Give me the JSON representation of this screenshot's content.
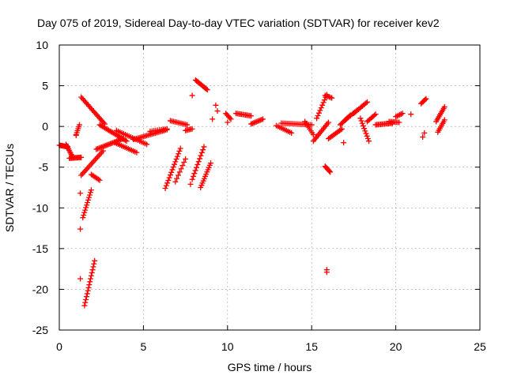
{
  "chart_data": {
    "type": "scatter",
    "title": "Day 075 of 2019, Sidereal Day-to-day VTEC variation (SDTVAR) for receiver kev2",
    "xlabel": "GPS time / hours",
    "ylabel": "SDTVAR / TECUs",
    "xlim": [
      0,
      25
    ],
    "ylim": [
      -25,
      10
    ],
    "xticks": [
      0,
      5,
      10,
      15,
      20,
      25
    ],
    "yticks": [
      -25,
      -20,
      -15,
      -10,
      -5,
      0,
      5,
      10
    ],
    "grid": true,
    "marker": "+",
    "color": "#ff0000",
    "series": [
      {
        "name": "SDTVAR",
        "segments": [
          {
            "x0": 0.0,
            "x1": 0.5,
            "y0": -2.3,
            "y1": -2.5,
            "n": 10
          },
          {
            "x0": 0.4,
            "x1": 0.8,
            "y0": -2.2,
            "y1": -3.8,
            "n": 10
          },
          {
            "x0": 0.6,
            "x1": 1.3,
            "y0": -3.9,
            "y1": -3.8,
            "n": 12
          },
          {
            "x0": 1.0,
            "x1": 1.2,
            "y0": -1.0,
            "y1": 0.2,
            "n": 6
          },
          {
            "x0": 1.3,
            "x1": 2.7,
            "y0": 3.6,
            "y1": 0.3,
            "n": 22
          },
          {
            "x0": 2.4,
            "x1": 4.0,
            "y0": 0.2,
            "y1": -1.8,
            "n": 22
          },
          {
            "x0": 1.3,
            "x1": 2.6,
            "y0": -6.0,
            "y1": -3.0,
            "n": 18
          },
          {
            "x0": 2.2,
            "x1": 3.8,
            "y0": -2.8,
            "y1": -1.5,
            "n": 22
          },
          {
            "x0": 1.4,
            "x1": 1.9,
            "y0": -11.2,
            "y1": -7.8,
            "n": 12
          },
          {
            "x0": 1.5,
            "x1": 2.1,
            "y0": -22.0,
            "y1": -16.5,
            "n": 16
          },
          {
            "x0": 1.9,
            "x1": 2.4,
            "y0": -5.9,
            "y1": -6.6,
            "n": 8
          },
          {
            "x0": 3.3,
            "x1": 4.6,
            "y0": -2.0,
            "y1": -3.2,
            "n": 14
          },
          {
            "x0": 3.4,
            "x1": 5.2,
            "y0": -0.5,
            "y1": -2.2,
            "n": 18
          },
          {
            "x0": 4.4,
            "x1": 6.4,
            "y0": -1.6,
            "y1": -0.4,
            "n": 24
          },
          {
            "x0": 5.4,
            "x1": 6.4,
            "y0": -0.6,
            "y1": -0.3,
            "n": 10
          },
          {
            "x0": 6.3,
            "x1": 7.2,
            "y0": -7.6,
            "y1": -2.7,
            "n": 16
          },
          {
            "x0": 6.6,
            "x1": 7.6,
            "y0": 0.7,
            "y1": 0.2,
            "n": 12
          },
          {
            "x0": 6.9,
            "x1": 7.5,
            "y0": -6.8,
            "y1": -4.0,
            "n": 8
          },
          {
            "x0": 7.5,
            "x1": 7.9,
            "y0": -0.5,
            "y1": -0.3,
            "n": 6
          },
          {
            "x0": 7.9,
            "x1": 8.6,
            "y0": -6.5,
            "y1": -2.5,
            "n": 12
          },
          {
            "x0": 8.1,
            "x1": 8.8,
            "y0": 5.7,
            "y1": 4.5,
            "n": 12
          },
          {
            "x0": 8.4,
            "x1": 9.0,
            "y0": -7.5,
            "y1": -4.5,
            "n": 12
          },
          {
            "x0": 9.9,
            "x1": 10.2,
            "y0": 1.6,
            "y1": 0.9,
            "n": 6
          },
          {
            "x0": 10.5,
            "x1": 11.4,
            "y0": 1.6,
            "y1": 1.3,
            "n": 12
          },
          {
            "x0": 11.4,
            "x1": 12.1,
            "y0": 0.3,
            "y1": 0.9,
            "n": 10
          },
          {
            "x0": 12.9,
            "x1": 13.8,
            "y0": 0.1,
            "y1": -0.8,
            "n": 10
          },
          {
            "x0": 13.2,
            "x1": 15.0,
            "y0": 0.4,
            "y1": 0.2,
            "n": 20
          },
          {
            "x0": 14.6,
            "x1": 15.1,
            "y0": 0.6,
            "y1": -1.0,
            "n": 8
          },
          {
            "x0": 15.1,
            "x1": 16.0,
            "y0": -1.8,
            "y1": 0.5,
            "n": 14
          },
          {
            "x0": 15.3,
            "x1": 15.9,
            "y0": 1.0,
            "y1": 3.9,
            "n": 10
          },
          {
            "x0": 15.8,
            "x1": 16.2,
            "y0": 3.8,
            "y1": 3.5,
            "n": 6
          },
          {
            "x0": 15.8,
            "x1": 16.1,
            "y0": -4.9,
            "y1": -5.6,
            "n": 8
          },
          {
            "x0": 16.0,
            "x1": 16.8,
            "y0": -1.5,
            "y1": -0.3,
            "n": 12
          },
          {
            "x0": 16.7,
            "x1": 17.3,
            "y0": 0.2,
            "y1": 1.4,
            "n": 10
          },
          {
            "x0": 17.0,
            "x1": 17.7,
            "y0": 0.8,
            "y1": 2.0,
            "n": 10
          },
          {
            "x0": 17.5,
            "x1": 18.3,
            "y0": 1.6,
            "y1": 3.0,
            "n": 12
          },
          {
            "x0": 17.9,
            "x1": 18.4,
            "y0": 1.0,
            "y1": -1.8,
            "n": 10
          },
          {
            "x0": 18.3,
            "x1": 18.8,
            "y0": 0.6,
            "y1": 1.5,
            "n": 8
          },
          {
            "x0": 18.8,
            "x1": 19.8,
            "y0": 0.2,
            "y1": 0.4,
            "n": 14
          },
          {
            "x0": 19.6,
            "x1": 20.2,
            "y0": 0.6,
            "y1": 0.5,
            "n": 8
          },
          {
            "x0": 20.0,
            "x1": 20.4,
            "y0": 1.2,
            "y1": 1.6,
            "n": 6
          },
          {
            "x0": 21.5,
            "x1": 21.8,
            "y0": 2.8,
            "y1": 3.4,
            "n": 6
          },
          {
            "x0": 22.4,
            "x1": 22.9,
            "y0": 0.6,
            "y1": 2.4,
            "n": 10
          },
          {
            "x0": 22.5,
            "x1": 22.9,
            "y0": -0.7,
            "y1": 0.8,
            "n": 8
          }
        ],
        "points": [
          {
            "x": 1.25,
            "y": -12.6
          },
          {
            "x": 1.25,
            "y": -8.2
          },
          {
            "x": 1.25,
            "y": -18.7
          },
          {
            "x": 1.0,
            "y": -1.1
          },
          {
            "x": 7.9,
            "y": 3.8
          },
          {
            "x": 7.8,
            "y": -7.1
          },
          {
            "x": 9.3,
            "y": 2.6
          },
          {
            "x": 9.4,
            "y": 1.9
          },
          {
            "x": 9.1,
            "y": 0.9
          },
          {
            "x": 10.0,
            "y": 0.5
          },
          {
            "x": 15.9,
            "y": -17.6
          },
          {
            "x": 15.9,
            "y": -17.9
          },
          {
            "x": 16.9,
            "y": -2.0
          },
          {
            "x": 21.6,
            "y": -1.3
          },
          {
            "x": 21.7,
            "y": -0.8
          },
          {
            "x": 20.9,
            "y": 1.5
          }
        ]
      }
    ]
  }
}
